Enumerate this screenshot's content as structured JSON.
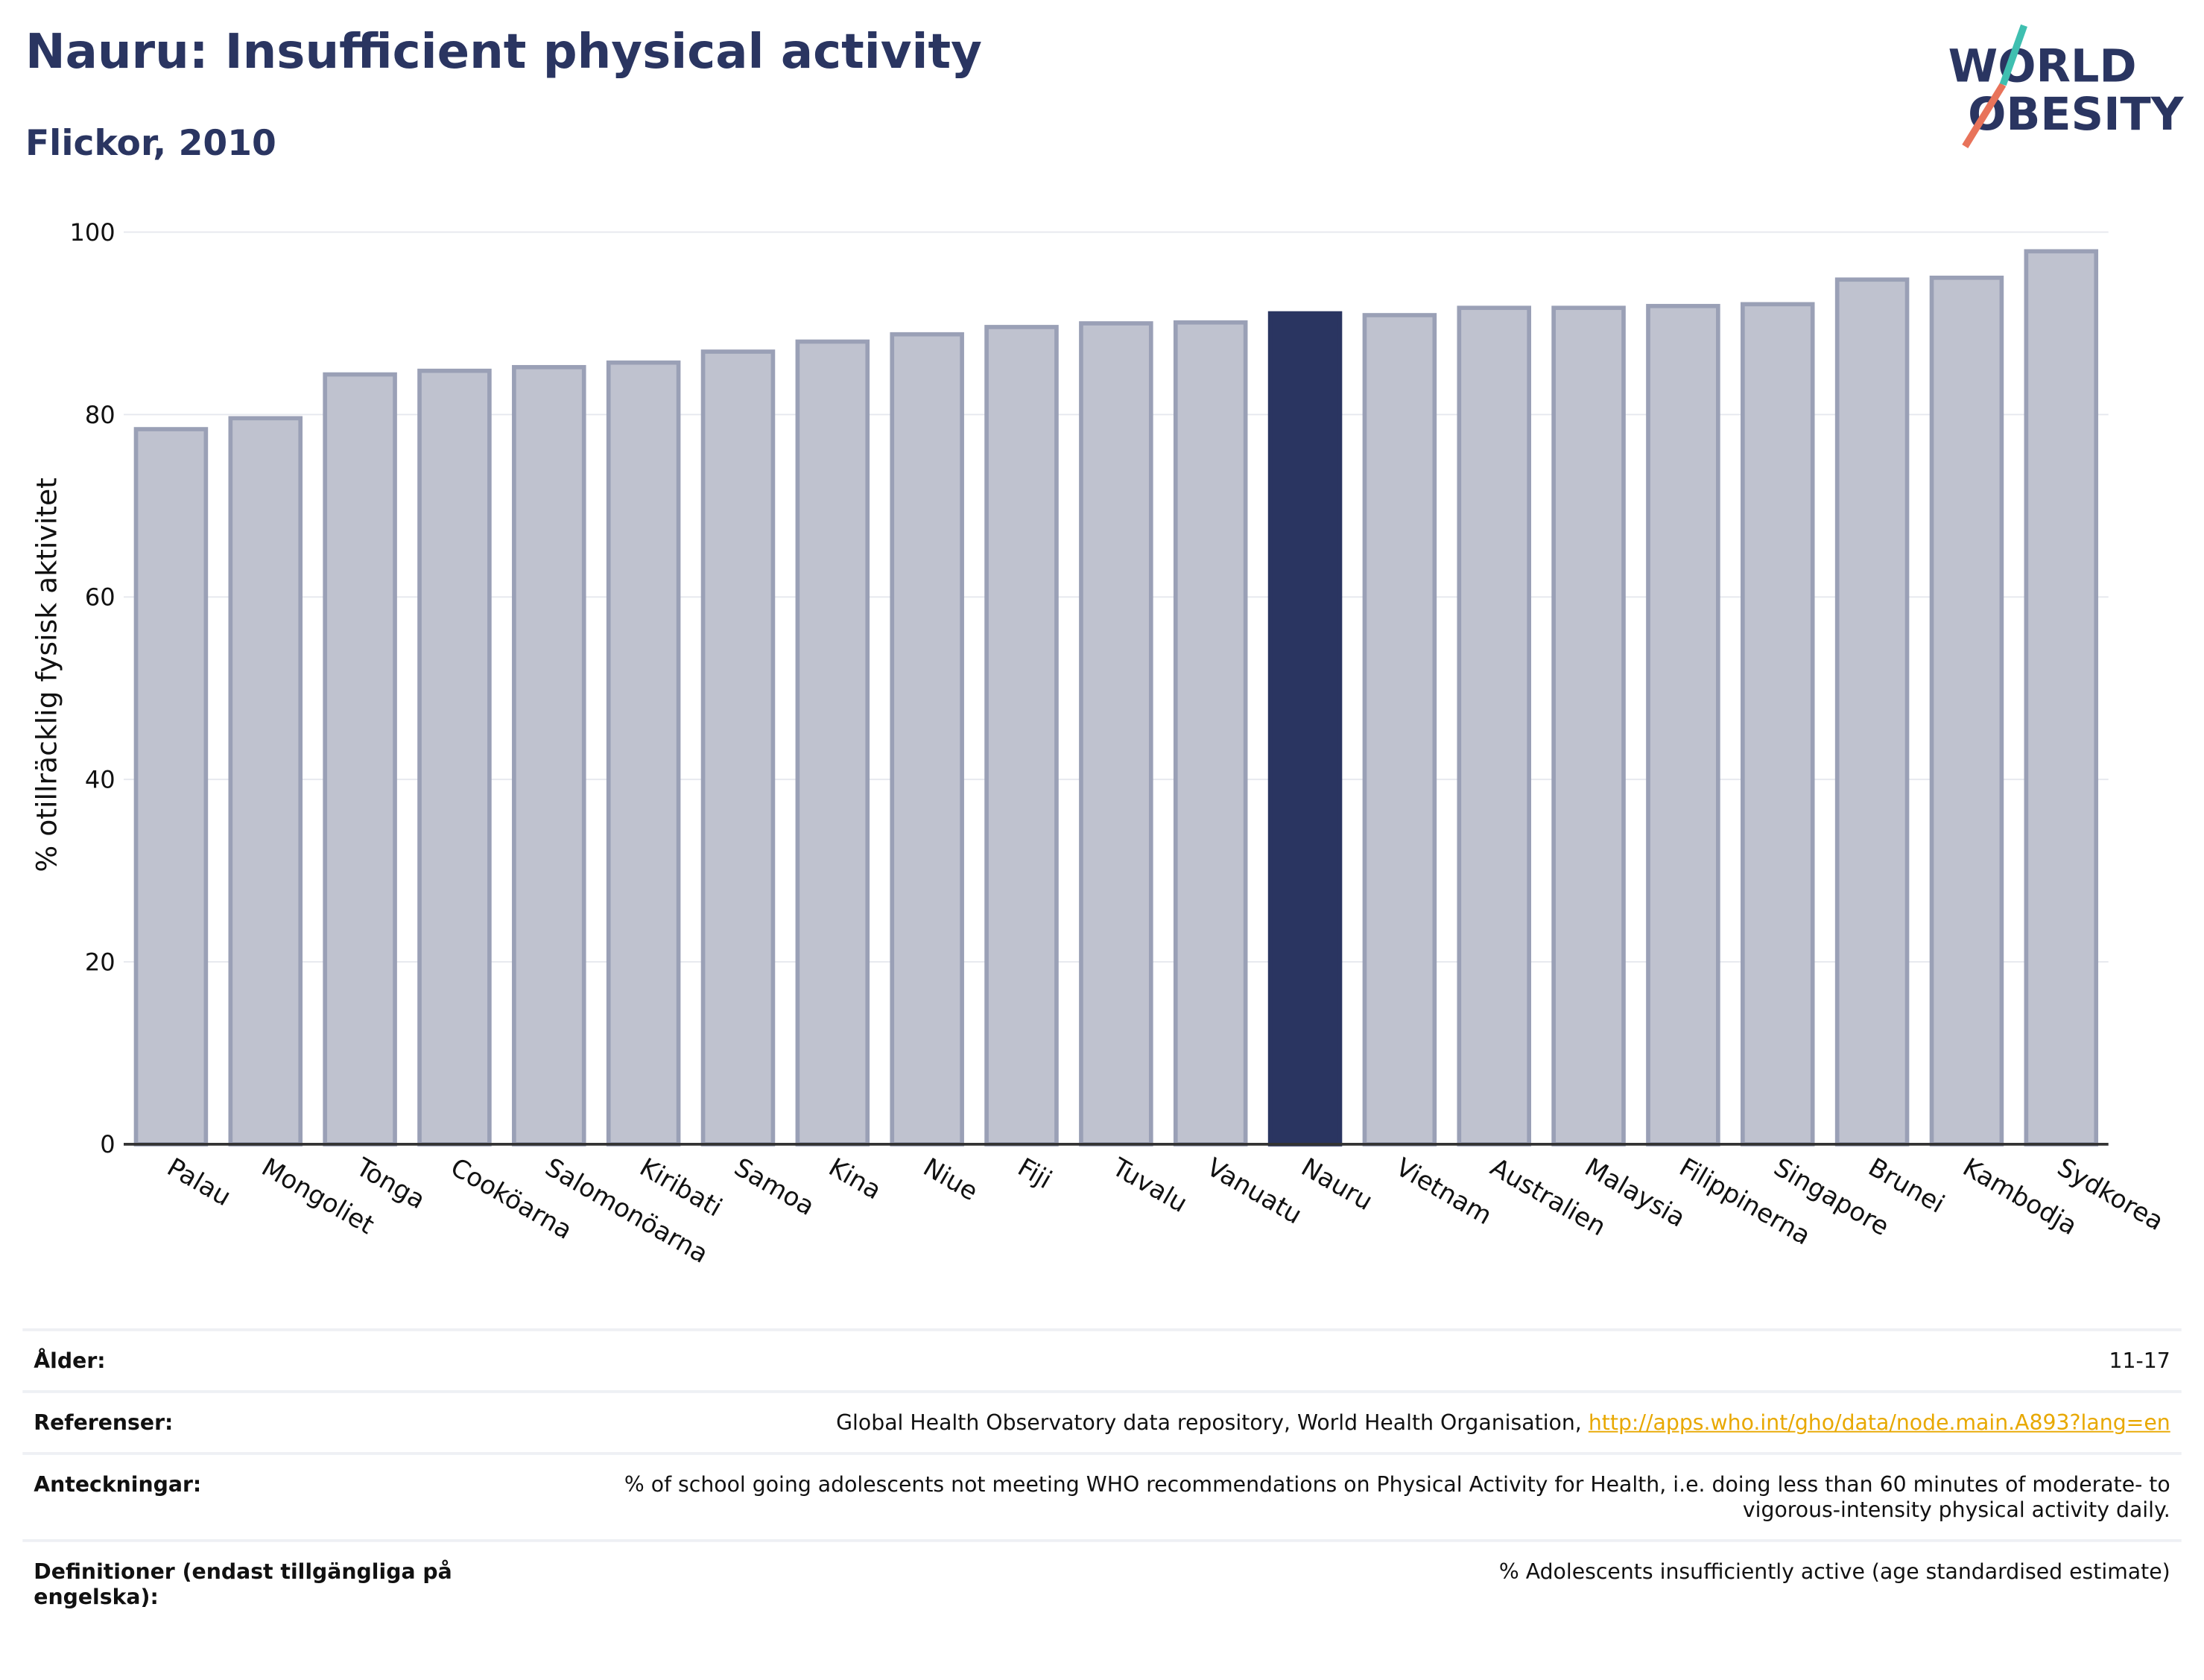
{
  "chart_data": {
    "type": "bar",
    "title": "Nauru: Insufficient physical activity",
    "subtitle": "Flickor, 2010",
    "y_label": "% otillräcklig fysisk aktivitet",
    "categories": [
      "Palau",
      "Mongoliet",
      "Tonga",
      "Cooköarna",
      "Salomonöarna",
      "Kiribati",
      "Samoa",
      "Kina",
      "Niue",
      "Fiji",
      "Tuvalu",
      "Vanuatu",
      "Nauru",
      "Vietnam",
      "Australien",
      "Malaysia",
      "Filippinerna",
      "Singapore",
      "Brunei",
      "Kambodja",
      "Sydkorea"
    ],
    "values": [
      78.4,
      79.6,
      84.4,
      84.8,
      85.2,
      85.7,
      86.9,
      88.0,
      88.8,
      89.6,
      90.0,
      90.1,
      91.1,
      90.9,
      91.7,
      91.7,
      91.9,
      92.1,
      94.8,
      95.0,
      97.9
    ],
    "color": "#bfc2cf",
    "edge_color": "#9aa0b6",
    "highlight_category": "Nauru",
    "highlight_color": "#2a3561",
    "ylim": [
      0,
      100
    ],
    "yticks": [
      0,
      20,
      40,
      60,
      80,
      100
    ],
    "grid": true
  },
  "logo": {
    "line1": "WORLD",
    "line2": "OBESITY"
  },
  "table": {
    "rows": [
      {
        "label": "Ålder:",
        "value": "11-17"
      },
      {
        "label": "Referenser:",
        "value": "Global Health Observatory data repository, World Health Organisation,",
        "link": "http://apps.who.int/gho/data/node.main.A893?lang=en"
      },
      {
        "label": "Anteckningar:",
        "value": "% of school going adolescents not meeting WHO recommendations on Physical Activity for Health, i.e. doing less than 60 minutes of moderate- to vigorous-intensity physical activity daily."
      },
      {
        "label": "Definitioner (endast tillgängliga på engelska):",
        "value": "% Adolescents insufficiently active (age standardised estimate)"
      }
    ]
  }
}
